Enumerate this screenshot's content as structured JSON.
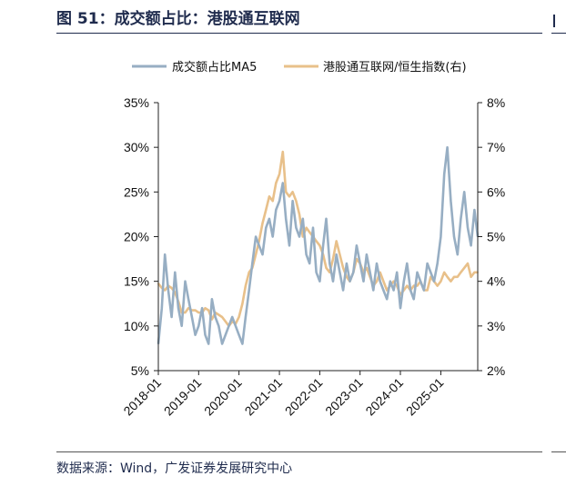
{
  "figure": {
    "title": "图 51：成交额占比：港股通互联网",
    "source": "数据来源：Wind，广发证券发展研究中心"
  },
  "colors": {
    "series_left": "#97aec3",
    "series_right": "#e8c08a",
    "axis": "#222222",
    "title": "#1f2b4d"
  },
  "chart_data": {
    "type": "line",
    "title": "",
    "xlabel": "",
    "ylabel": "",
    "grid": false,
    "legend_position": "top",
    "x_ticks": [
      "2018-01",
      "2019-01",
      "2020-01",
      "2021-01",
      "2022-01",
      "2023-01",
      "2024-01",
      "2025-01"
    ],
    "x_range": [
      "2018-01",
      "2025-12"
    ],
    "y_left": {
      "range": [
        5,
        35
      ],
      "ticks": [
        "5%",
        "10%",
        "15%",
        "20%",
        "25%",
        "30%",
        "35%"
      ],
      "tick_values": [
        5,
        10,
        15,
        20,
        25,
        30,
        35
      ],
      "unit": "%"
    },
    "y_right": {
      "range": [
        2,
        8
      ],
      "ticks": [
        "2%",
        "3%",
        "4%",
        "5%",
        "6%",
        "7%",
        "8%"
      ],
      "tick_values": [
        2,
        3,
        4,
        5,
        6,
        7,
        8
      ],
      "unit": "%"
    },
    "series": [
      {
        "name": "成交额占比MA5",
        "axis": "left",
        "color": "#97aec3",
        "x": [
          "2018-01",
          "2018-02",
          "2018-03",
          "2018-04",
          "2018-05",
          "2018-06",
          "2018-07",
          "2018-08",
          "2018-09",
          "2018-10",
          "2018-11",
          "2018-12",
          "2019-01",
          "2019-02",
          "2019-03",
          "2019-04",
          "2019-05",
          "2019-06",
          "2019-07",
          "2019-08",
          "2019-09",
          "2019-10",
          "2019-11",
          "2019-12",
          "2020-01",
          "2020-02",
          "2020-03",
          "2020-04",
          "2020-05",
          "2020-06",
          "2020-07",
          "2020-08",
          "2020-09",
          "2020-10",
          "2020-11",
          "2020-12",
          "2021-01",
          "2021-02",
          "2021-03",
          "2021-04",
          "2021-05",
          "2021-06",
          "2021-07",
          "2021-08",
          "2021-09",
          "2021-10",
          "2021-11",
          "2021-12",
          "2022-01",
          "2022-02",
          "2022-03",
          "2022-04",
          "2022-05",
          "2022-06",
          "2022-07",
          "2022-08",
          "2022-09",
          "2022-10",
          "2022-11",
          "2022-12",
          "2023-01",
          "2023-02",
          "2023-03",
          "2023-04",
          "2023-05",
          "2023-06",
          "2023-07",
          "2023-08",
          "2023-09",
          "2023-10",
          "2023-11",
          "2023-12",
          "2024-01",
          "2024-02",
          "2024-03",
          "2024-04",
          "2024-05",
          "2024-06",
          "2024-07",
          "2024-08",
          "2024-09",
          "2024-10",
          "2024-11",
          "2024-12",
          "2025-01",
          "2025-02",
          "2025-03",
          "2025-04",
          "2025-05",
          "2025-06",
          "2025-07",
          "2025-08",
          "2025-09",
          "2025-10",
          "2025-11",
          "2025-12"
        ],
        "values": [
          8,
          12,
          18,
          14,
          11,
          16,
          12,
          10,
          15,
          13,
          11,
          9,
          10,
          12,
          9,
          8,
          13,
          11,
          10,
          8,
          9,
          10,
          11,
          10,
          9,
          8,
          11,
          14,
          17,
          20,
          19,
          18,
          21,
          22,
          20,
          23,
          24,
          26,
          22,
          19,
          24,
          21,
          20,
          22,
          18,
          17,
          21,
          16,
          15,
          19,
          22,
          17,
          15,
          18,
          16,
          14,
          17,
          15,
          16,
          19,
          17,
          15,
          18,
          16,
          14,
          17,
          15,
          14,
          13,
          15,
          14,
          16,
          12,
          15,
          17,
          14,
          13,
          16,
          15,
          14,
          17,
          16,
          15,
          17,
          20,
          27,
          30,
          24,
          20,
          18,
          22,
          25,
          21,
          19,
          23,
          20
        ]
      },
      {
        "name": "港股通互联网/恒生指数(右)",
        "axis": "right",
        "color": "#e8c08a",
        "x": [
          "2018-01",
          "2018-02",
          "2018-03",
          "2018-04",
          "2018-05",
          "2018-06",
          "2018-07",
          "2018-08",
          "2018-09",
          "2018-10",
          "2018-11",
          "2018-12",
          "2019-01",
          "2019-02",
          "2019-03",
          "2019-04",
          "2019-05",
          "2019-06",
          "2019-07",
          "2019-08",
          "2019-09",
          "2019-10",
          "2019-11",
          "2019-12",
          "2020-01",
          "2020-02",
          "2020-03",
          "2020-04",
          "2020-05",
          "2020-06",
          "2020-07",
          "2020-08",
          "2020-09",
          "2020-10",
          "2020-11",
          "2020-12",
          "2021-01",
          "2021-02",
          "2021-03",
          "2021-04",
          "2021-05",
          "2021-06",
          "2021-07",
          "2021-08",
          "2021-09",
          "2021-10",
          "2021-11",
          "2021-12",
          "2022-01",
          "2022-02",
          "2022-03",
          "2022-04",
          "2022-05",
          "2022-06",
          "2022-07",
          "2022-08",
          "2022-09",
          "2022-10",
          "2022-11",
          "2022-12",
          "2023-01",
          "2023-02",
          "2023-03",
          "2023-04",
          "2023-05",
          "2023-06",
          "2023-07",
          "2023-08",
          "2023-09",
          "2023-10",
          "2023-11",
          "2023-12",
          "2024-01",
          "2024-02",
          "2024-03",
          "2024-04",
          "2024-05",
          "2024-06",
          "2024-07",
          "2024-08",
          "2024-09",
          "2024-10",
          "2024-11",
          "2024-12",
          "2025-01",
          "2025-02",
          "2025-03",
          "2025-04",
          "2025-05",
          "2025-06",
          "2025-07",
          "2025-08",
          "2025-09",
          "2025-10",
          "2025-11",
          "2025-12"
        ],
        "values": [
          3.95,
          3.85,
          3.8,
          3.9,
          3.85,
          3.75,
          3.55,
          3.3,
          3.3,
          3.4,
          3.35,
          3.35,
          3.3,
          3.3,
          3.4,
          3.35,
          3.15,
          3.3,
          3.25,
          3.2,
          3.1,
          3.0,
          3.1,
          3.05,
          3.2,
          3.5,
          3.9,
          4.2,
          4.3,
          4.6,
          4.9,
          5.3,
          5.6,
          5.9,
          5.8,
          6.2,
          6.4,
          6.9,
          6.0,
          5.9,
          6.0,
          5.8,
          5.5,
          5.0,
          5.2,
          5.1,
          5.0,
          4.9,
          4.8,
          4.6,
          4.3,
          4.2,
          4.5,
          4.9,
          4.6,
          4.3,
          4.1,
          4.0,
          4.2,
          4.5,
          4.4,
          4.2,
          4.3,
          4.1,
          3.9,
          4.0,
          4.2,
          4.0,
          3.8,
          3.9,
          4.0,
          3.9,
          3.7,
          3.8,
          3.9,
          3.8,
          3.9,
          3.9,
          4.0,
          3.8,
          3.8,
          4.1,
          4.0,
          3.9,
          4.0,
          4.2,
          4.1,
          4.0,
          4.1,
          4.1,
          4.2,
          4.3,
          4.4,
          4.1,
          4.2,
          4.2
        ]
      }
    ]
  }
}
